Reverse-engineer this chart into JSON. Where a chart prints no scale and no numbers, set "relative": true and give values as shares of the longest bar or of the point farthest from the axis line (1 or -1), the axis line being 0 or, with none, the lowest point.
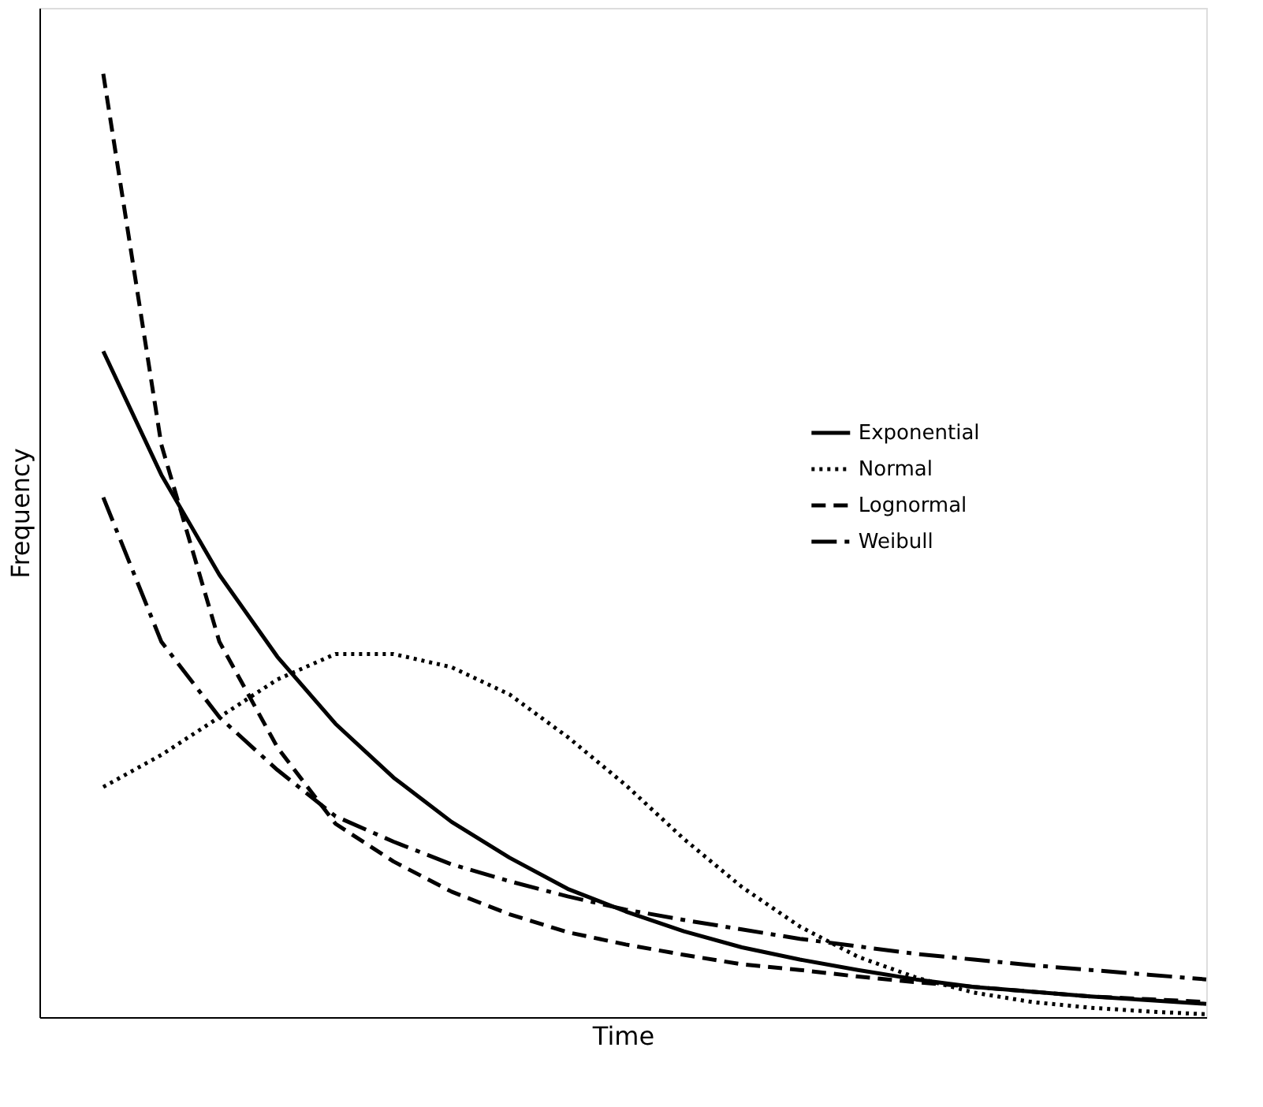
{
  "chart_data": {
    "type": "line",
    "relative": true,
    "xlabel": "Time",
    "ylabel": "Frequency",
    "legend": "right",
    "grid": false,
    "tick_labels": false,
    "marker": "none",
    "categories": [
      null,
      null,
      null,
      null,
      null,
      null,
      null,
      null,
      null,
      null,
      null,
      null,
      null,
      null,
      null,
      null,
      null,
      null,
      null,
      null
    ],
    "series": [
      {
        "name": "Exponential",
        "color": "#000000",
        "line_style": "solid",
        "values": [
          0.706,
          0.575,
          0.469,
          0.382,
          0.311,
          0.254,
          0.207,
          0.169,
          0.136,
          0.112,
          0.091,
          0.074,
          0.061,
          0.05,
          0.04,
          0.032,
          0.027,
          0.022,
          0.018,
          0.014
        ]
      },
      {
        "name": "Normal",
        "color": "#000000",
        "line_style": "dotted",
        "values": [
          0.244,
          0.278,
          0.318,
          0.358,
          0.385,
          0.385,
          0.371,
          0.342,
          0.297,
          0.246,
          0.189,
          0.138,
          0.096,
          0.064,
          0.042,
          0.026,
          0.016,
          0.01,
          0.006,
          0.003
        ]
      },
      {
        "name": "Lognormal",
        "color": "#000000",
        "line_style": "dashed",
        "values": [
          1,
          0.607,
          0.398,
          0.286,
          0.205,
          0.165,
          0.133,
          0.109,
          0.09,
          0.077,
          0.066,
          0.056,
          0.05,
          0.043,
          0.037,
          0.032,
          0.027,
          0.022,
          0.019,
          0.016
        ]
      },
      {
        "name": "Weibull",
        "color": "#000000",
        "line_style": "dashdot",
        "values": [
          0.551,
          0.398,
          0.318,
          0.262,
          0.213,
          0.186,
          0.162,
          0.144,
          0.128,
          0.114,
          0.103,
          0.093,
          0.083,
          0.075,
          0.067,
          0.061,
          0.055,
          0.05,
          0.045,
          0.04
        ]
      }
    ]
  }
}
